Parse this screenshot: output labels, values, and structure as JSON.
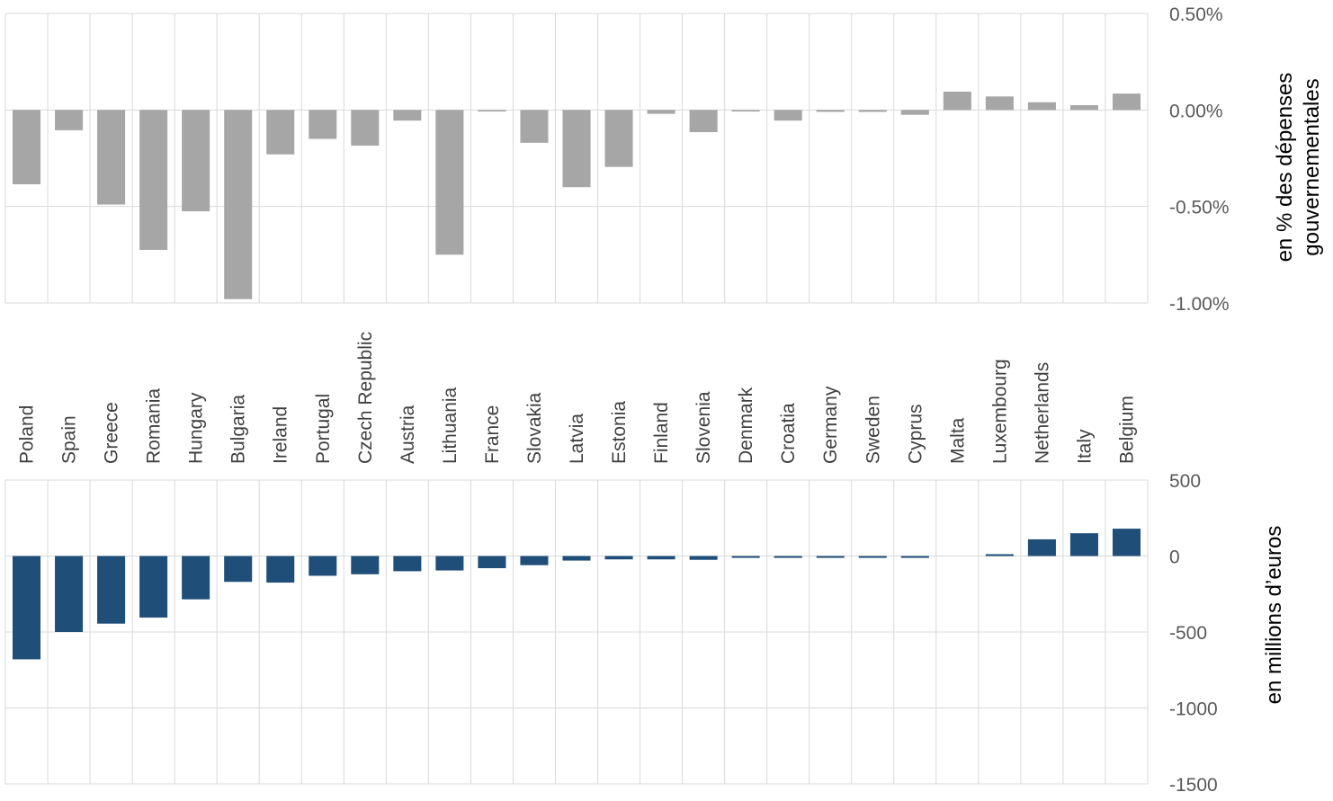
{
  "chart_data": [
    {
      "type": "bar",
      "categories": [
        "Poland",
        "Spain",
        "Greece",
        "Romania",
        "Hungary",
        "Bulgaria",
        "Ireland",
        "Portugal",
        "Czech Republic",
        "Austria",
        "Lithuania",
        "France",
        "Slovakia",
        "Latvia",
        "Estonia",
        "Finland",
        "Slovenia",
        "Denmark",
        "Croatia",
        "Germany",
        "Sweden",
        "Cyprus",
        "Malta",
        "Luxembourg",
        "Netherlands",
        "Italy",
        "Belgium"
      ],
      "values": [
        -0.385,
        -0.105,
        -0.49,
        -0.725,
        -0.525,
        -0.98,
        -0.23,
        -0.15,
        -0.185,
        -0.055,
        -0.75,
        -0.008,
        -0.17,
        -0.4,
        -0.295,
        -0.02,
        -0.115,
        -0.008,
        -0.055,
        -0.01,
        -0.01,
        -0.025,
        0.095,
        0.07,
        0.04,
        0.025,
        0.085
      ],
      "ylabel": "en % des dépenses gouvernementales",
      "ylim": [
        -1.0,
        0.5
      ],
      "yticks": [
        0.5,
        0.0,
        -0.5,
        -1.0
      ],
      "ytick_labels": [
        "0.50%",
        "0.00%",
        "-0.50%",
        "-1.00%"
      ],
      "color": "#a6a6a6",
      "grid": true,
      "y_axis_side": "right"
    },
    {
      "type": "bar",
      "categories": [
        "Poland",
        "Spain",
        "Greece",
        "Romania",
        "Hungary",
        "Bulgaria",
        "Ireland",
        "Portugal",
        "Czech Republic",
        "Austria",
        "Lithuania",
        "France",
        "Slovakia",
        "Latvia",
        "Estonia",
        "Finland",
        "Slovenia",
        "Denmark",
        "Croatia",
        "Germany",
        "Sweden",
        "Cyprus",
        "Malta",
        "Luxembourg",
        "Netherlands",
        "Italy",
        "Belgium"
      ],
      "values": [
        -680,
        -500,
        -445,
        -405,
        -285,
        -170,
        -175,
        -130,
        -120,
        -100,
        -95,
        -80,
        -60,
        -30,
        -22,
        -22,
        -25,
        -12,
        -12,
        -12,
        -12,
        -12,
        0,
        12,
        110,
        150,
        180
      ],
      "ylabel": "en millions d’euros",
      "ylim": [
        -1500,
        500
      ],
      "yticks": [
        500,
        0,
        -500,
        -1000,
        -1500
      ],
      "ytick_labels": [
        "500",
        "0",
        "-500",
        "-1000",
        "-1500"
      ],
      "color": "#1f4e79",
      "grid": true,
      "y_axis_side": "right"
    }
  ]
}
